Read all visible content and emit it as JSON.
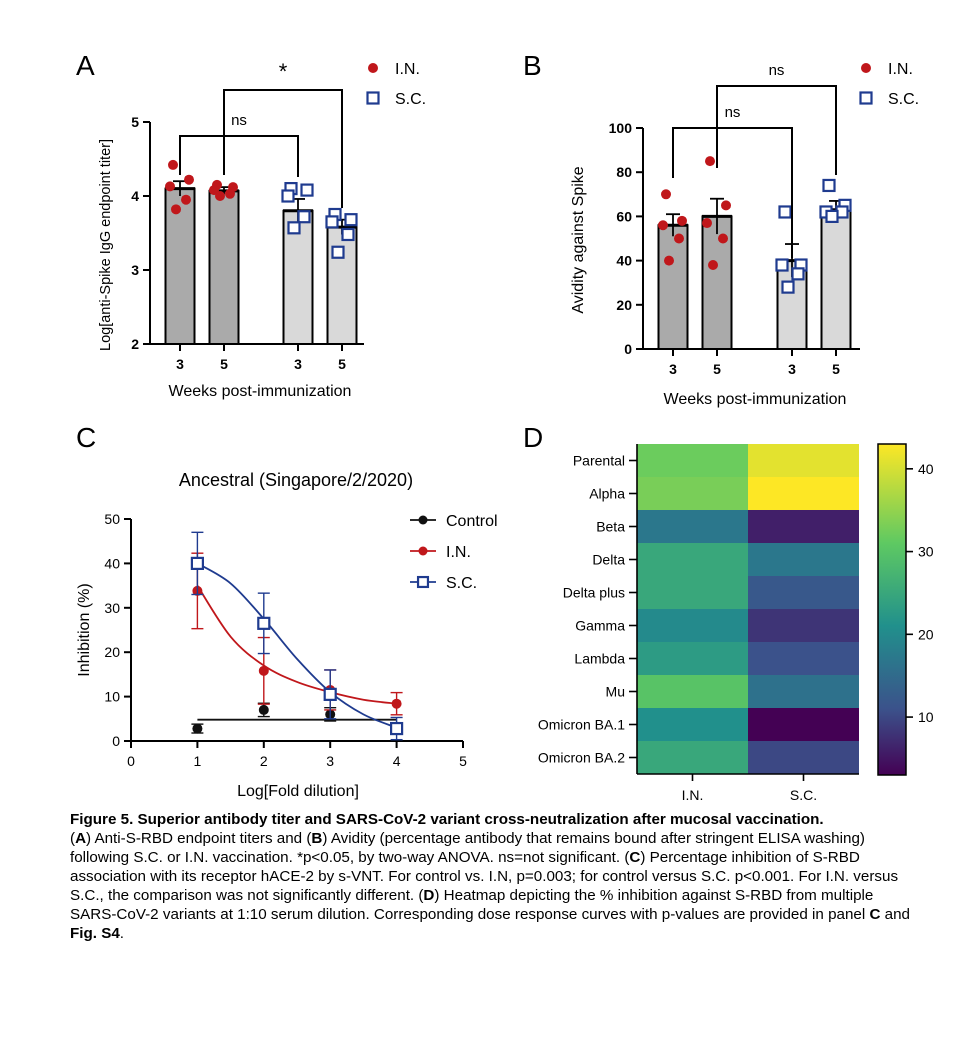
{
  "colors": {
    "in": "#c0171b",
    "sc": "#1f3b8f",
    "control": "#111111",
    "bar_in": "#aaaaaa",
    "bar_sc": "#d9d9d9"
  },
  "chart_data": [
    {
      "panel": "A",
      "type": "bar",
      "title": "",
      "ylabel": "Log[anti-Spike IgG endpoint titer]",
      "xlabel": "Weeks post-immunization",
      "ylim": [
        2,
        5
      ],
      "yticks": [
        "2",
        "3",
        "4",
        "5"
      ],
      "categories": [
        "3",
        "5",
        "3",
        "5"
      ],
      "groups": [
        "I.N.",
        "I.N.",
        "S.C.",
        "S.C."
      ],
      "values": [
        4.1,
        4.07,
        3.8,
        3.58
      ],
      "errors": [
        0.1,
        0.05,
        0.16,
        0.1
      ],
      "points": [
        [
          4.42,
          4.22,
          4.13,
          3.95,
          3.82
        ],
        [
          4.15,
          4.12,
          4.08,
          4.03,
          4.0
        ],
        [
          4.1,
          4.08,
          4.0,
          3.72,
          3.57
        ],
        [
          3.75,
          3.68,
          3.65,
          3.48,
          3.24
        ]
      ],
      "legend": [
        "I.N.",
        "S.C."
      ],
      "legend_position": "top-right",
      "brackets": [
        {
          "from": 0,
          "to": 2,
          "label": "ns"
        },
        {
          "from": 1,
          "to": 3,
          "label": "*"
        }
      ]
    },
    {
      "panel": "B",
      "type": "bar",
      "title": "",
      "ylabel": "Avidity against Spike",
      "xlabel": "Weeks post-immunization",
      "ylim": [
        0,
        100
      ],
      "yticks": [
        "0",
        "20",
        "40",
        "60",
        "80",
        "100"
      ],
      "categories": [
        "3",
        "5",
        "3",
        "5"
      ],
      "groups": [
        "I.N.",
        "I.N.",
        "S.C.",
        "S.C."
      ],
      "values": [
        56,
        60,
        40,
        63
      ],
      "errors": [
        5,
        8,
        7.5,
        4
      ],
      "points": [
        [
          70,
          58,
          56,
          50,
          40
        ],
        [
          85,
          65,
          57,
          50,
          38
        ],
        [
          62,
          38,
          38,
          34,
          28
        ],
        [
          74,
          65,
          62,
          62,
          60
        ]
      ],
      "legend": [
        "I.N.",
        "S.C."
      ],
      "legend_position": "top-right",
      "brackets": [
        {
          "from": 0,
          "to": 2,
          "label": "ns"
        },
        {
          "from": 1,
          "to": 3,
          "label": "ns"
        }
      ]
    },
    {
      "panel": "C",
      "type": "line",
      "title": "Ancestral (Singapore/2/2020)",
      "xlabel": "Log[Fold dilution]",
      "ylabel": "Inhibition (%)",
      "xlim": [
        0,
        5
      ],
      "ylim": [
        0,
        50
      ],
      "xticks": [
        "0",
        "1",
        "2",
        "3",
        "4",
        "5"
      ],
      "yticks": [
        "0",
        "10",
        "20",
        "30",
        "40",
        "50"
      ],
      "x": [
        1,
        2,
        3,
        4
      ],
      "series": [
        {
          "name": "Control",
          "values": [
            2.8,
            7.0,
            6.0,
            3.2
          ],
          "errors": [
            1.0,
            1.5,
            1.5,
            0.8
          ],
          "fit": [
            [
              1,
              4.8
            ],
            [
              4,
              4.8
            ]
          ]
        },
        {
          "name": "I.N.",
          "values": [
            33.8,
            15.8,
            11.5,
            8.4
          ],
          "errors": [
            8.5,
            7.5,
            4.5,
            2.5
          ],
          "fit": [
            [
              1,
              35
            ],
            [
              1.5,
              23.5
            ],
            [
              2,
              17
            ],
            [
              2.5,
              13.3
            ],
            [
              3,
              11
            ],
            [
              3.5,
              9.3
            ],
            [
              4,
              8.4
            ]
          ]
        },
        {
          "name": "S.C.",
          "values": [
            40.0,
            26.5,
            10.5,
            2.8
          ],
          "errors": [
            7.0,
            6.8,
            5.5,
            2.5
          ],
          "fit": [
            [
              1,
              40
            ],
            [
              1.5,
              35.5
            ],
            [
              2,
              27.5
            ],
            [
              2.5,
              18.5
            ],
            [
              3,
              11
            ],
            [
              3.5,
              6
            ],
            [
              4,
              3
            ]
          ]
        }
      ],
      "legend_position": "top-right"
    },
    {
      "panel": "D",
      "type": "heatmap",
      "title": "",
      "rows": [
        "Parental",
        "Alpha",
        "Beta",
        "Delta",
        "Delta plus",
        "Gamma",
        "Lambda",
        "Mu",
        "Omicron BA.1",
        "Omicron BA.2"
      ],
      "columns": [
        "I.N.",
        "S.C."
      ],
      "values": [
        [
          32,
          41
        ],
        [
          33,
          43
        ],
        [
          17,
          6
        ],
        [
          25,
          17
        ],
        [
          25,
          12
        ],
        [
          20,
          8
        ],
        [
          23,
          11
        ],
        [
          30,
          16
        ],
        [
          21,
          3
        ],
        [
          25,
          10
        ]
      ],
      "colorbar_ticks": [
        "10",
        "20",
        "30",
        "40"
      ],
      "colorbar_range": [
        3,
        43
      ]
    }
  ],
  "panels": {
    "a": "A",
    "b": "B",
    "c": "C",
    "d": "D"
  },
  "caption": {
    "title": "Figure 5. Superior antibody titer and SARS-CoV-2 variant cross-neutralization after mucosal vaccination.",
    "s1": "(",
    "a": "A",
    "s2": ") Anti-S-RBD endpoint titers and (",
    "b": "B",
    "s3": ") Avidity (percentage antibody that remains bound after stringent ELISA washing) following S.C. or I.N. vaccination. *p<0.05, by two-way ANOVA. ns=not significant. (",
    "c": "C",
    "s4": ") Percentage inhibition of S-RBD association with its receptor hACE-2 by s-VNT. For control vs. I.N, p=0.003; for control versus S.C. p<0.001. For I.N. versus S.C., the comparison was not significantly different. (",
    "d": "D",
    "s5": ") Heatmap depicting the % inhibition against S-RBD from multiple SARS-CoV-2 variants at 1:10 serum dilution. Corresponding dose response curves with p-values are provided in panel ",
    "c2": "C",
    "s6": " and ",
    "fig": "Fig. S4",
    "s7": "."
  }
}
